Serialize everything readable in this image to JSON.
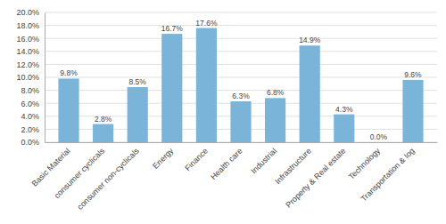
{
  "chart_data": {
    "type": "bar",
    "categories": [
      "Basic Material",
      "consumer cyclicals",
      "consumer non-cyclicals",
      "Energy",
      "Finance",
      "Health care",
      "Industrial",
      "Infrastructure",
      "Property & Real estate",
      "Technology",
      "Transportation & log"
    ],
    "values": [
      9.8,
      2.8,
      8.5,
      16.7,
      17.6,
      6.3,
      6.8,
      14.9,
      4.3,
      0.0,
      9.6
    ],
    "value_labels": [
      "9.8%",
      "2.8%",
      "8.5%",
      "16.7%",
      "17.6%",
      "6.3%",
      "6.8%",
      "14.9%",
      "4.3%",
      "0.0%",
      "9.6%"
    ],
    "data_labels": true,
    "color": "#7ab4d8",
    "ylim": [
      0,
      20
    ],
    "yticks": [
      {
        "value": 0,
        "label": "0.0%"
      },
      {
        "value": 2,
        "label": "2.0%"
      },
      {
        "value": 4,
        "label": "4.0%"
      },
      {
        "value": 6,
        "label": "6.0%"
      },
      {
        "value": 8,
        "label": "8.0%"
      },
      {
        "value": 10,
        "label": "10.0%"
      },
      {
        "value": 12,
        "label": "12.0%"
      },
      {
        "value": 14,
        "label": "14.0%"
      },
      {
        "value": 16,
        "label": "16.0%"
      },
      {
        "value": 18,
        "label": "18.0%"
      },
      {
        "value": 20,
        "label": "20.0%"
      }
    ],
    "grid": true
  }
}
